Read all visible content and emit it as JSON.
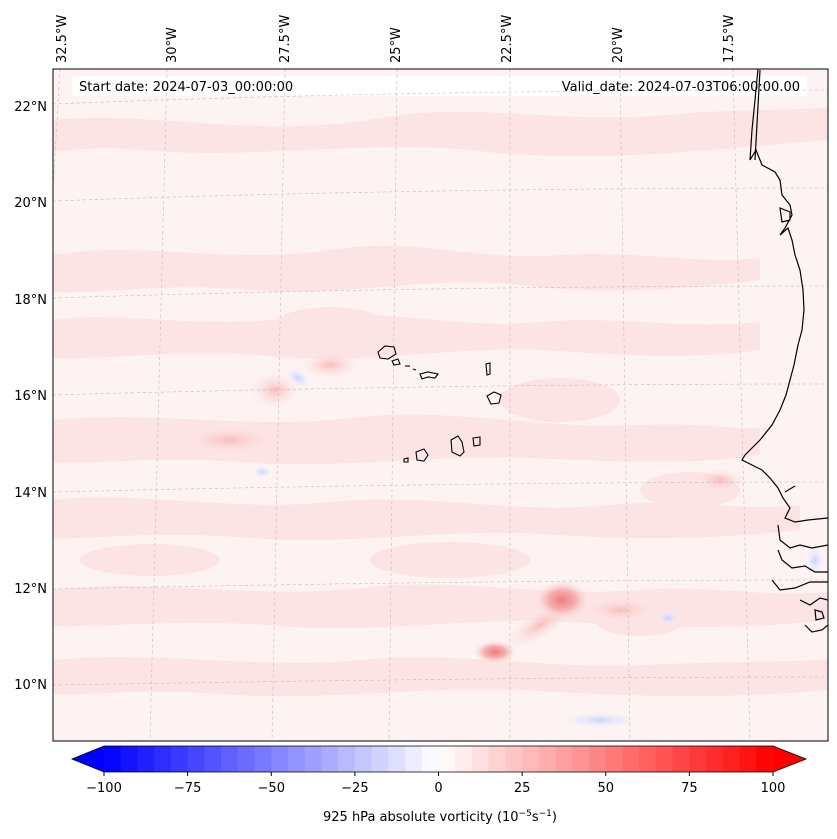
{
  "map": {
    "start_date_label": "Start date: 2024-07-03_00:00:00",
    "valid_date_label": "Valid_date: 2024-07-03T06:00:00.00",
    "lon_labels": [
      "32.5°W",
      "30°W",
      "27.5°W",
      "25°W",
      "22.5°W",
      "20°W",
      "17.5°W"
    ],
    "lat_labels": [
      "22°N",
      "20°N",
      "18°N",
      "16°N",
      "14°N",
      "12°N",
      "10°N"
    ],
    "projection": "lambert-conformal",
    "field_colors": {
      "background": "#fdf3f3",
      "weak_positive": "#fde4e4",
      "moderate_positive": "#fbcfcf",
      "strong_positive": "#f4a3a3",
      "weak_negative": "#e8ecff",
      "coastline": "#000000",
      "grid": "#bbbbbb"
    }
  },
  "colorbar": {
    "label": "925 hPa absolute vorticity (10",
    "label_exp1": "−5",
    "label_mid": "s",
    "label_exp2": "−1",
    "label_end": ")",
    "ticks": [
      "−100",
      "−75",
      "−50",
      "−25",
      "0",
      "25",
      "50",
      "75",
      "100"
    ],
    "tick_values": [
      -100,
      -75,
      -50,
      -25,
      0,
      25,
      50,
      75,
      100
    ],
    "vmin": -100,
    "vmax": 100,
    "step": 5,
    "cmap": "bwr",
    "extend": "both"
  }
}
